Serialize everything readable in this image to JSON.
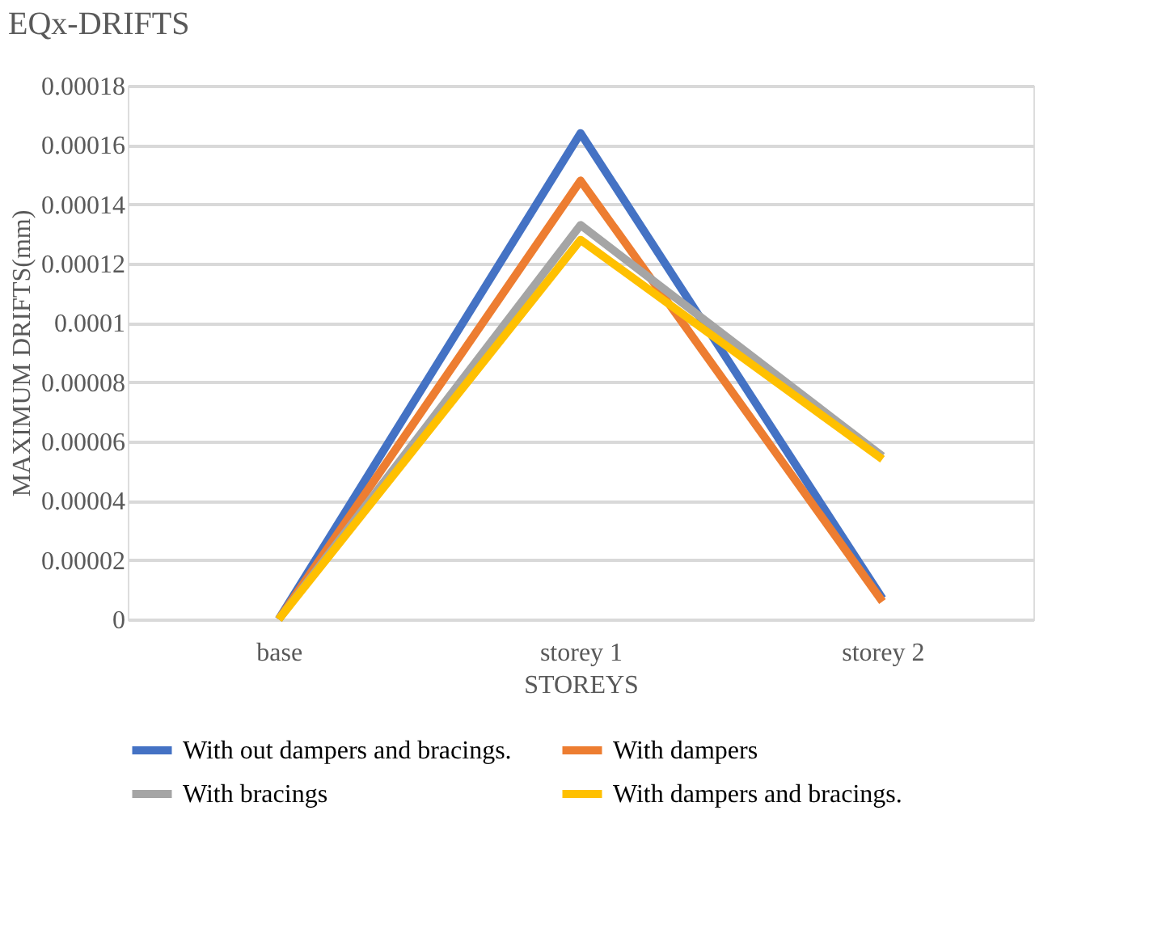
{
  "chart_data": {
    "type": "line",
    "title": "EQx-DRIFTS",
    "xlabel": "STOREYS",
    "ylabel": "MAXIMUM DRIFTS(mm)",
    "categories": [
      "base",
      "storey 1",
      "storey 2"
    ],
    "series": [
      {
        "name": "With out dampers and bracings.",
        "color": "#4472c4",
        "values": [
          0,
          0.000164,
          7e-06
        ]
      },
      {
        "name": "With dampers",
        "color": "#ed7d31",
        "values": [
          0,
          0.000148,
          6e-06
        ]
      },
      {
        "name": "With bracings",
        "color": "#a5a5a5",
        "values": [
          0,
          0.000133,
          5.5e-05
        ]
      },
      {
        "name": "With dampers and bracings.",
        "color": "#ffc000",
        "values": [
          0,
          0.000128,
          5.4e-05
        ]
      }
    ],
    "ylim": [
      0,
      0.00018
    ],
    "yticks": [
      0,
      {
        "value": 2e-05,
        "label": "0.00002"
      },
      {
        "value": 4e-05,
        "label": "0.00004"
      },
      {
        "value": 6e-05,
        "label": "0.00006"
      },
      {
        "value": 8e-05,
        "label": "0.00008"
      },
      0.0001,
      0.00012,
      0.00014,
      0.00016,
      0.00018
    ],
    "grid": "y",
    "legend": "bottom",
    "marker": "none",
    "line_style": "solid"
  }
}
